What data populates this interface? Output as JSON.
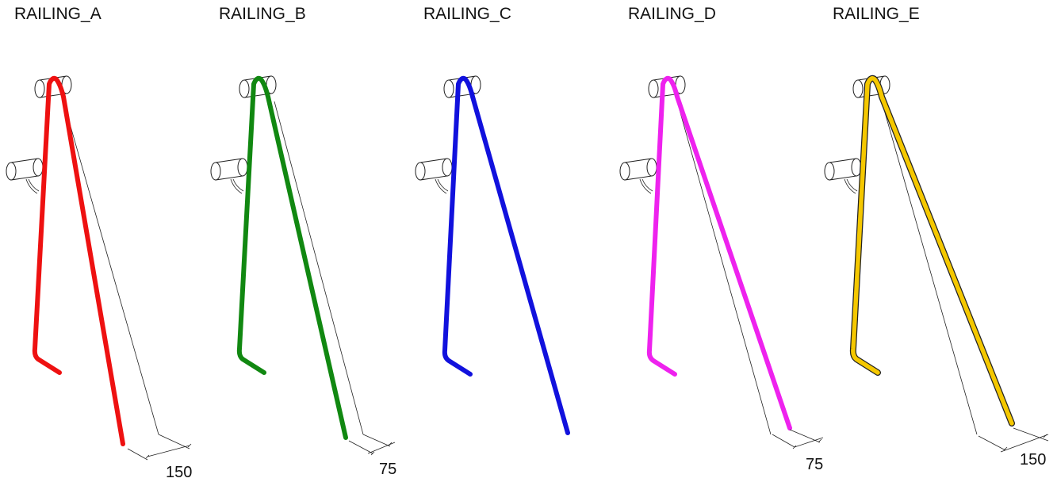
{
  "railings": [
    {
      "id": "A",
      "label": "RAILING_A",
      "color": "#ee1111",
      "dimension": "150",
      "outline": false
    },
    {
      "id": "B",
      "label": "RAILING_B",
      "color": "#118811",
      "dimension": "75",
      "outline": false
    },
    {
      "id": "C",
      "label": "RAILING_C",
      "color": "#1111dd",
      "dimension": "",
      "outline": false
    },
    {
      "id": "D",
      "label": "RAILING_D",
      "color": "#ee22ee",
      "dimension": "75",
      "outline": false
    },
    {
      "id": "E",
      "label": "RAILING_E",
      "color": "#f5c800",
      "dimension": "150",
      "outline": true
    }
  ]
}
